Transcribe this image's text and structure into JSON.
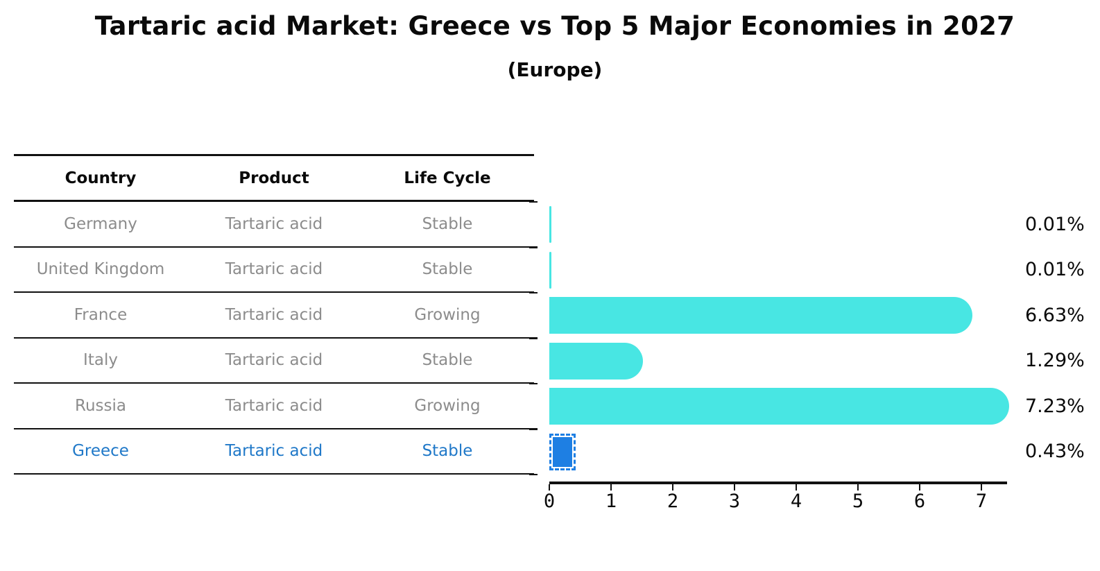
{
  "title": "Tartaric acid Market: Greece vs Top 5 Major Economies in 2027",
  "subtitle": "(Europe)",
  "table": {
    "headers": [
      "Country",
      "Product",
      "Life Cycle"
    ],
    "rows": [
      {
        "country": "Germany",
        "product": "Tartaric acid",
        "life_cycle": "Stable",
        "highlight": false
      },
      {
        "country": "United Kingdom",
        "product": "Tartaric acid",
        "life_cycle": "Stable",
        "highlight": false
      },
      {
        "country": "France",
        "product": "Tartaric acid",
        "life_cycle": "Growing",
        "highlight": false
      },
      {
        "country": "Italy",
        "product": "Tartaric acid",
        "life_cycle": "Stable",
        "highlight": false
      },
      {
        "country": "Russia",
        "product": "Tartaric acid",
        "life_cycle": "Growing",
        "highlight": false
      },
      {
        "country": "Greece",
        "product": "Tartaric acid",
        "life_cycle": "Stable",
        "highlight": true
      }
    ]
  },
  "chart_data": {
    "type": "bar",
    "orientation": "horizontal",
    "title": "Tartaric acid Market: Greece vs Top 5 Major Economies in 2027",
    "subtitle": "(Europe)",
    "categories": [
      "Germany",
      "United Kingdom",
      "France",
      "Italy",
      "Russia",
      "Greece"
    ],
    "values": [
      0.01,
      0.01,
      6.63,
      1.29,
      7.23,
      0.43
    ],
    "value_labels": [
      "0.01%",
      "0.01%",
      "6.63%",
      "1.29%",
      "7.23%",
      "0.43%"
    ],
    "xlabel": "",
    "ylabel": "",
    "xlim": [
      0,
      7.4
    ],
    "xticks": [
      0,
      1,
      2,
      3,
      4,
      5,
      6,
      7
    ],
    "grid": false,
    "legend": false,
    "highlight_index": 5,
    "bar_color": "#48e6e3",
    "highlight_color": "#1e7fe3",
    "highlight_text_color": "#1f78c8"
  }
}
